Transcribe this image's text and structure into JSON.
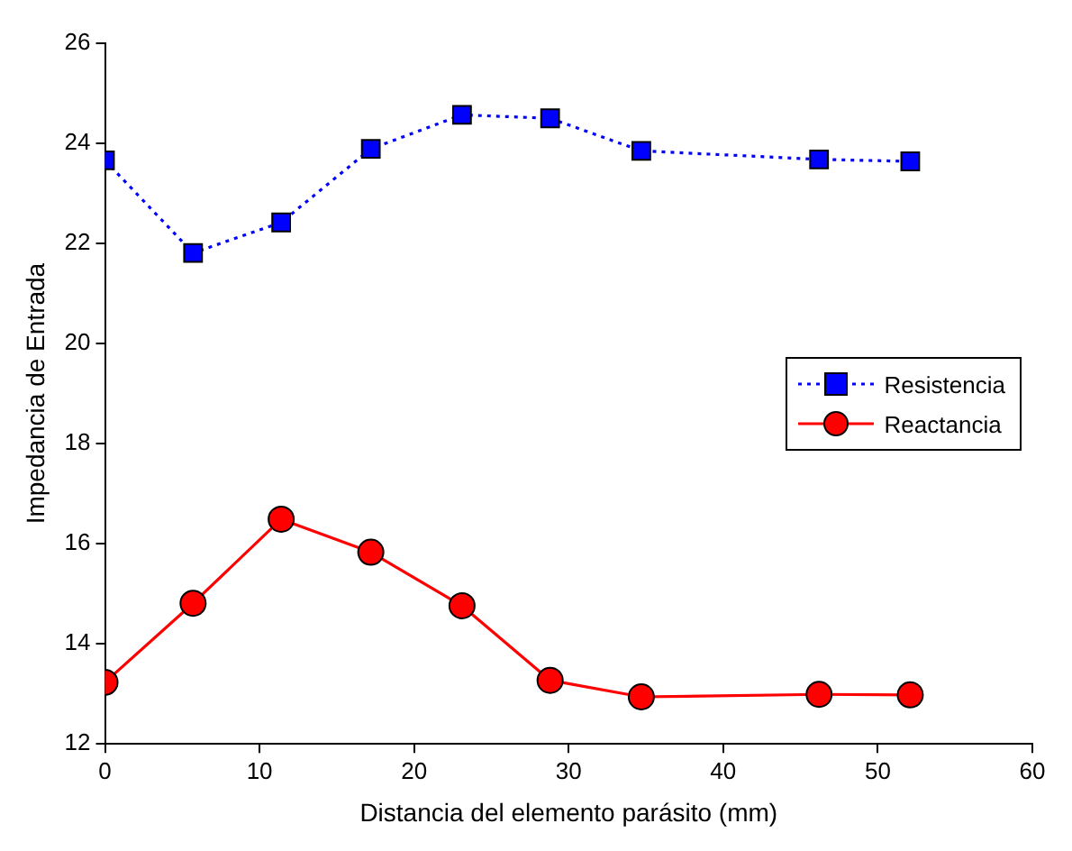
{
  "chart_data": {
    "type": "line",
    "xlabel": "Distancia del elemento parásito (mm)",
    "ylabel": "Impedancia de Entrada",
    "x": [
      0,
      5.7,
      11.4,
      17.2,
      23.1,
      28.8,
      34.7,
      46.2,
      52.1
    ],
    "series": [
      {
        "name": "Resistencia",
        "color": "#0000ff",
        "marker": "square",
        "line_style": "dotted",
        "values": [
          23.66,
          21.81,
          22.42,
          23.89,
          24.57,
          24.5,
          23.85,
          23.68,
          23.64
        ]
      },
      {
        "name": "Reactancia",
        "color": "#ff0000",
        "marker": "circle",
        "line_style": "solid",
        "values": [
          13.23,
          14.81,
          16.49,
          15.83,
          14.76,
          13.27,
          12.94,
          12.99,
          12.98
        ]
      }
    ],
    "xlim": [
      0,
      60
    ],
    "xticks": [
      0,
      10,
      20,
      30,
      40,
      50,
      60
    ],
    "ylim": [
      12,
      26
    ],
    "yticks": [
      12,
      14,
      16,
      18,
      20,
      22,
      24,
      26
    ],
    "grid": false,
    "legend": "right"
  }
}
